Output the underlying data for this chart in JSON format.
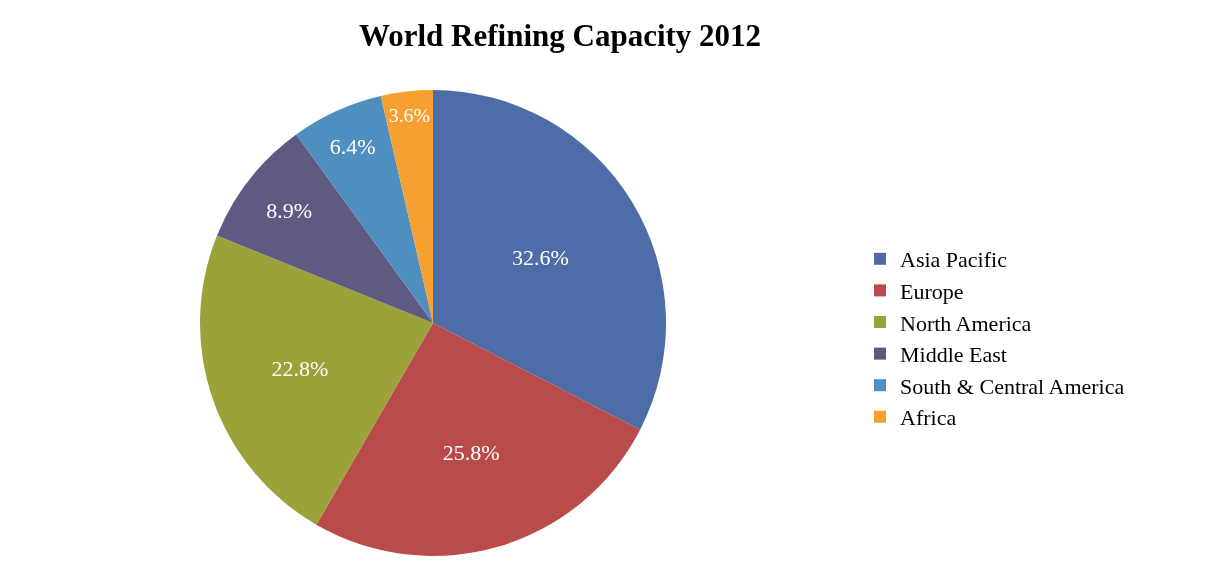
{
  "chart_data": {
    "type": "pie",
    "title": "World Refining Capacity 2012",
    "categories": [
      "Asia Pacific",
      "Europe",
      "North America",
      "Middle East",
      "South & Central America",
      "Africa"
    ],
    "values": [
      32.6,
      25.8,
      22.8,
      8.9,
      6.4,
      3.6
    ],
    "value_labels": [
      "32.6%",
      "25.8%",
      "22.8%",
      "8.9%",
      "6.4%",
      "3.6%"
    ],
    "colors": [
      "#4d6ca8",
      "#b94b4a",
      "#9ca23a",
      "#5e5a82",
      "#4f8fc0",
      "#f5a030"
    ],
    "legend": "right"
  }
}
